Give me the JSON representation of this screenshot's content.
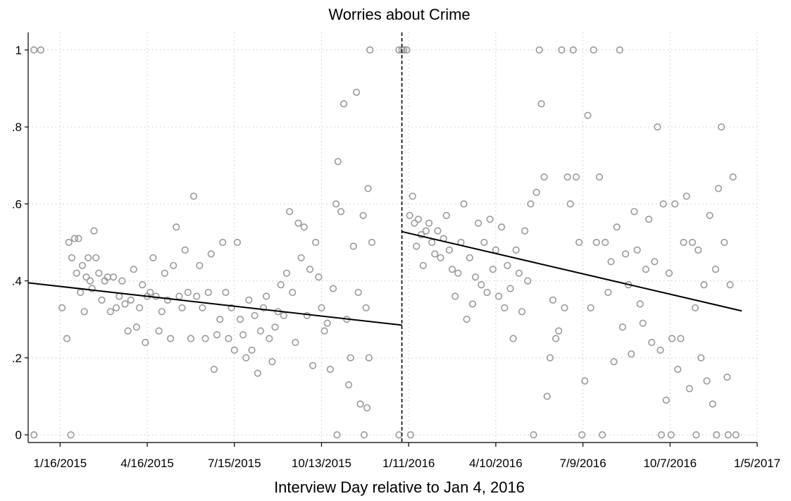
{
  "chart_data": {
    "type": "scatter",
    "title": "Worries about Crime",
    "xlabel": "Interview Day relative to Jan 4, 2016",
    "ylabel": "",
    "x_ticks": [
      {
        "date": "2015-01-16",
        "label": "1/16/2015"
      },
      {
        "date": "2015-04-16",
        "label": "4/16/2015"
      },
      {
        "date": "2015-07-15",
        "label": "7/15/2015"
      },
      {
        "date": "2015-10-13",
        "label": "10/13/2015"
      },
      {
        "date": "2016-01-11",
        "label": "1/11/2016"
      },
      {
        "date": "2016-04-10",
        "label": "4/10/2016"
      },
      {
        "date": "2016-07-09",
        "label": "7/9/2016"
      },
      {
        "date": "2016-10-07",
        "label": "10/7/2016"
      },
      {
        "date": "2017-01-05",
        "label": "1/5/2017"
      }
    ],
    "y_ticks": [
      {
        "value": 0,
        "label": "0"
      },
      {
        "value": 0.2,
        "label": ".2"
      },
      {
        "value": 0.4,
        "label": ".4"
      },
      {
        "value": 0.6,
        "label": ".6"
      },
      {
        "value": 0.8,
        "label": ".8"
      },
      {
        "value": 1,
        "label": "1"
      }
    ],
    "xlim": [
      "2014-12-14",
      "2017-01-05"
    ],
    "ylim": [
      -0.02,
      1.02
    ],
    "grid": true,
    "cutoff_date": "2016-01-04",
    "fit_lines": [
      {
        "segment": "pre",
        "start": {
          "x": "2014-12-14",
          "y": 0.395
        },
        "end": {
          "x": "2016-01-04",
          "y": 0.285
        }
      },
      {
        "segment": "post",
        "start": {
          "x": "2016-01-04",
          "y": 0.528
        },
        "end": {
          "x": "2016-12-20",
          "y": 0.322
        }
      }
    ],
    "series": [
      {
        "segment": "pre",
        "points": [
          [
            "2014-12-20",
            1
          ],
          [
            "2014-12-27",
            1
          ],
          [
            "2014-12-20",
            0
          ],
          [
            "2015-01-27",
            0
          ],
          [
            "2015-01-18",
            0.33
          ],
          [
            "2015-01-23",
            0.25
          ],
          [
            "2015-01-25",
            0.5
          ],
          [
            "2015-01-28",
            0.46
          ],
          [
            "2015-01-31",
            0.51
          ],
          [
            "2015-02-02",
            0.42
          ],
          [
            "2015-02-04",
            0.51
          ],
          [
            "2015-02-06",
            0.37
          ],
          [
            "2015-02-08",
            0.44
          ],
          [
            "2015-02-10",
            0.32
          ],
          [
            "2015-02-12",
            0.41
          ],
          [
            "2015-02-14",
            0.46
          ],
          [
            "2015-02-16",
            0.4
          ],
          [
            "2015-02-18",
            0.38
          ],
          [
            "2015-02-20",
            0.53
          ],
          [
            "2015-02-22",
            0.46
          ],
          [
            "2015-02-25",
            0.42
          ],
          [
            "2015-02-28",
            0.35
          ],
          [
            "2015-03-03",
            0.4
          ],
          [
            "2015-03-06",
            0.41
          ],
          [
            "2015-03-09",
            0.32
          ],
          [
            "2015-03-12",
            0.41
          ],
          [
            "2015-03-15",
            0.33
          ],
          [
            "2015-03-18",
            0.36
          ],
          [
            "2015-03-21",
            0.4
          ],
          [
            "2015-03-24",
            0.34
          ],
          [
            "2015-03-27",
            0.27
          ],
          [
            "2015-03-30",
            0.35
          ],
          [
            "2015-04-02",
            0.43
          ],
          [
            "2015-04-05",
            0.28
          ],
          [
            "2015-04-08",
            0.33
          ],
          [
            "2015-04-11",
            0.39
          ],
          [
            "2015-04-14",
            0.24
          ],
          [
            "2015-04-16",
            0.36
          ],
          [
            "2015-04-19",
            0.37
          ],
          [
            "2015-04-22",
            0.46
          ],
          [
            "2015-04-25",
            0.36
          ],
          [
            "2015-04-28",
            0.27
          ],
          [
            "2015-05-01",
            0.32
          ],
          [
            "2015-05-04",
            0.42
          ],
          [
            "2015-05-07",
            0.35
          ],
          [
            "2015-05-10",
            0.25
          ],
          [
            "2015-05-13",
            0.44
          ],
          [
            "2015-05-16",
            0.54
          ],
          [
            "2015-05-19",
            0.36
          ],
          [
            "2015-05-22",
            0.33
          ],
          [
            "2015-05-25",
            0.48
          ],
          [
            "2015-05-28",
            0.37
          ],
          [
            "2015-05-31",
            0.25
          ],
          [
            "2015-06-03",
            0.62
          ],
          [
            "2015-06-06",
            0.36
          ],
          [
            "2015-06-09",
            0.44
          ],
          [
            "2015-06-12",
            0.33
          ],
          [
            "2015-06-15",
            0.25
          ],
          [
            "2015-06-18",
            0.37
          ],
          [
            "2015-06-21",
            0.47
          ],
          [
            "2015-06-24",
            0.17
          ],
          [
            "2015-06-27",
            0.26
          ],
          [
            "2015-06-30",
            0.3
          ],
          [
            "2015-07-03",
            0.5
          ],
          [
            "2015-07-06",
            0.37
          ],
          [
            "2015-07-09",
            0.25
          ],
          [
            "2015-07-12",
            0.33
          ],
          [
            "2015-07-15",
            0.22
          ],
          [
            "2015-07-18",
            0.5
          ],
          [
            "2015-07-21",
            0.3
          ],
          [
            "2015-07-24",
            0.26
          ],
          [
            "2015-07-27",
            0.2
          ],
          [
            "2015-07-30",
            0.35
          ],
          [
            "2015-08-02",
            0.22
          ],
          [
            "2015-08-05",
            0.31
          ],
          [
            "2015-08-08",
            0.16
          ],
          [
            "2015-08-11",
            0.27
          ],
          [
            "2015-08-14",
            0.33
          ],
          [
            "2015-08-17",
            0.36
          ],
          [
            "2015-08-20",
            0.25
          ],
          [
            "2015-08-23",
            0.19
          ],
          [
            "2015-08-26",
            0.28
          ],
          [
            "2015-08-29",
            0.32
          ],
          [
            "2015-09-01",
            0.39
          ],
          [
            "2015-09-04",
            0.31
          ],
          [
            "2015-09-07",
            0.42
          ],
          [
            "2015-09-10",
            0.58
          ],
          [
            "2015-09-13",
            0.37
          ],
          [
            "2015-09-16",
            0.24
          ],
          [
            "2015-09-19",
            0.55
          ],
          [
            "2015-09-22",
            0.46
          ],
          [
            "2015-09-25",
            0.54
          ],
          [
            "2015-09-28",
            0.31
          ],
          [
            "2015-10-01",
            0.43
          ],
          [
            "2015-10-04",
            0.18
          ],
          [
            "2015-10-07",
            0.5
          ],
          [
            "2015-10-10",
            0.41
          ],
          [
            "2015-10-13",
            0.33
          ],
          [
            "2015-10-16",
            0.27
          ],
          [
            "2015-10-19",
            0.29
          ],
          [
            "2015-10-22",
            0.17
          ],
          [
            "2015-10-25",
            0.38
          ],
          [
            "2015-10-28",
            0.6
          ],
          [
            "2015-10-30",
            0.71
          ],
          [
            "2015-11-02",
            0.58
          ],
          [
            "2015-11-05",
            0.86
          ],
          [
            "2015-11-08",
            0.3
          ],
          [
            "2015-11-10",
            0.13
          ],
          [
            "2015-11-12",
            0.2
          ],
          [
            "2015-11-15",
            0.49
          ],
          [
            "2015-11-18",
            0.89
          ],
          [
            "2015-11-20",
            0.37
          ],
          [
            "2015-11-22",
            0.08
          ],
          [
            "2015-11-25",
            0.57
          ],
          [
            "2015-11-28",
            0.33
          ],
          [
            "2015-11-30",
            0.64
          ],
          [
            "2015-12-02",
            1
          ],
          [
            "2015-12-04",
            0.5
          ],
          [
            "2015-12-01",
            0.2
          ],
          [
            "2015-11-29",
            0.07
          ],
          [
            "2015-10-29",
            0
          ],
          [
            "2015-11-26",
            0
          ],
          [
            "2016-01-01",
            0
          ]
        ]
      },
      {
        "segment": "post",
        "points": [
          [
            "2016-01-01",
            1
          ],
          [
            "2016-01-04",
            1
          ],
          [
            "2016-01-06",
            1
          ],
          [
            "2016-01-09",
            1
          ],
          [
            "2016-01-13",
            0
          ],
          [
            "2016-01-12",
            0.57
          ],
          [
            "2016-01-15",
            0.62
          ],
          [
            "2016-01-17",
            0.55
          ],
          [
            "2016-01-19",
            0.49
          ],
          [
            "2016-01-21",
            0.56
          ],
          [
            "2016-01-24",
            0.52
          ],
          [
            "2016-01-26",
            0.44
          ],
          [
            "2016-01-29",
            0.53
          ],
          [
            "2016-02-01",
            0.55
          ],
          [
            "2016-02-04",
            0.5
          ],
          [
            "2016-02-07",
            0.47
          ],
          [
            "2016-02-10",
            0.53
          ],
          [
            "2016-02-13",
            0.46
          ],
          [
            "2016-02-16",
            0.51
          ],
          [
            "2016-02-19",
            0.57
          ],
          [
            "2016-02-22",
            0.48
          ],
          [
            "2016-02-25",
            0.43
          ],
          [
            "2016-02-28",
            0.36
          ],
          [
            "2016-03-02",
            0.42
          ],
          [
            "2016-03-05",
            0.5
          ],
          [
            "2016-03-08",
            0.6
          ],
          [
            "2016-03-11",
            0.3
          ],
          [
            "2016-03-14",
            0.46
          ],
          [
            "2016-03-17",
            0.34
          ],
          [
            "2016-03-20",
            0.41
          ],
          [
            "2016-03-23",
            0.55
          ],
          [
            "2016-03-26",
            0.39
          ],
          [
            "2016-03-29",
            0.5
          ],
          [
            "2016-04-01",
            0.37
          ],
          [
            "2016-04-04",
            0.56
          ],
          [
            "2016-04-07",
            0.43
          ],
          [
            "2016-04-10",
            0.48
          ],
          [
            "2016-04-13",
            0.36
          ],
          [
            "2016-04-16",
            0.54
          ],
          [
            "2016-04-19",
            0.33
          ],
          [
            "2016-04-22",
            0.44
          ],
          [
            "2016-04-25",
            0.38
          ],
          [
            "2016-04-28",
            0.25
          ],
          [
            "2016-05-01",
            0.48
          ],
          [
            "2016-05-04",
            0.42
          ],
          [
            "2016-05-07",
            0.32
          ],
          [
            "2016-05-10",
            0.53
          ],
          [
            "2016-05-13",
            0.4
          ],
          [
            "2016-05-16",
            0.6
          ],
          [
            "2016-05-19",
            0
          ],
          [
            "2016-05-22",
            0.63
          ],
          [
            "2016-05-25",
            1
          ],
          [
            "2016-05-27",
            0.86
          ],
          [
            "2016-05-30",
            0.67
          ],
          [
            "2016-06-02",
            0.1
          ],
          [
            "2016-06-05",
            0.2
          ],
          [
            "2016-06-08",
            0.35
          ],
          [
            "2016-06-11",
            0.25
          ],
          [
            "2016-06-14",
            0.27
          ],
          [
            "2016-06-17",
            1
          ],
          [
            "2016-06-20",
            0.33
          ],
          [
            "2016-06-23",
            0.67
          ],
          [
            "2016-06-26",
            0.6
          ],
          [
            "2016-06-29",
            1
          ],
          [
            "2016-07-02",
            0.67
          ],
          [
            "2016-07-05",
            0.5
          ],
          [
            "2016-07-08",
            0
          ],
          [
            "2016-07-11",
            0.14
          ],
          [
            "2016-07-14",
            0.83
          ],
          [
            "2016-07-17",
            0.33
          ],
          [
            "2016-07-20",
            1
          ],
          [
            "2016-07-23",
            0.5
          ],
          [
            "2016-07-26",
            0.67
          ],
          [
            "2016-07-29",
            0
          ],
          [
            "2016-08-01",
            0.5
          ],
          [
            "2016-08-04",
            0.37
          ],
          [
            "2016-08-07",
            0.45
          ],
          [
            "2016-08-10",
            0.19
          ],
          [
            "2016-08-13",
            0.54
          ],
          [
            "2016-08-16",
            1
          ],
          [
            "2016-08-19",
            0.28
          ],
          [
            "2016-08-22",
            0.47
          ],
          [
            "2016-08-25",
            0.39
          ],
          [
            "2016-08-28",
            0.21
          ],
          [
            "2016-08-31",
            0.58
          ],
          [
            "2016-09-03",
            0.48
          ],
          [
            "2016-09-06",
            0.34
          ],
          [
            "2016-09-09",
            0.29
          ],
          [
            "2016-09-12",
            0.43
          ],
          [
            "2016-09-15",
            0.56
          ],
          [
            "2016-09-18",
            0.24
          ],
          [
            "2016-09-21",
            0.45
          ],
          [
            "2016-09-24",
            0.8
          ],
          [
            "2016-09-27",
            0.22
          ],
          [
            "2016-09-30",
            0.6
          ],
          [
            "2016-10-03",
            0.09
          ],
          [
            "2016-10-06",
            0.42
          ],
          [
            "2016-10-09",
            0.25
          ],
          [
            "2016-10-12",
            0.6
          ],
          [
            "2016-10-15",
            0.17
          ],
          [
            "2016-10-18",
            0.25
          ],
          [
            "2016-10-21",
            0.5
          ],
          [
            "2016-10-24",
            0.62
          ],
          [
            "2016-10-27",
            0.12
          ],
          [
            "2016-10-30",
            0.5
          ],
          [
            "2016-11-02",
            0.33
          ],
          [
            "2016-11-05",
            0.48
          ],
          [
            "2016-11-08",
            0.2
          ],
          [
            "2016-11-11",
            0.39
          ],
          [
            "2016-11-14",
            0.14
          ],
          [
            "2016-11-17",
            0.57
          ],
          [
            "2016-11-20",
            0.08
          ],
          [
            "2016-11-23",
            0.43
          ],
          [
            "2016-11-26",
            0.64
          ],
          [
            "2016-11-29",
            0.8
          ],
          [
            "2016-12-02",
            0.5
          ],
          [
            "2016-12-05",
            0.15
          ],
          [
            "2016-12-08",
            0.39
          ],
          [
            "2016-12-11",
            0.67
          ],
          [
            "2016-12-14",
            0
          ],
          [
            "2016-09-28",
            0
          ],
          [
            "2016-10-08",
            0
          ],
          [
            "2016-11-03",
            0
          ],
          [
            "2016-11-24",
            0
          ],
          [
            "2016-12-06",
            0
          ]
        ]
      }
    ]
  }
}
